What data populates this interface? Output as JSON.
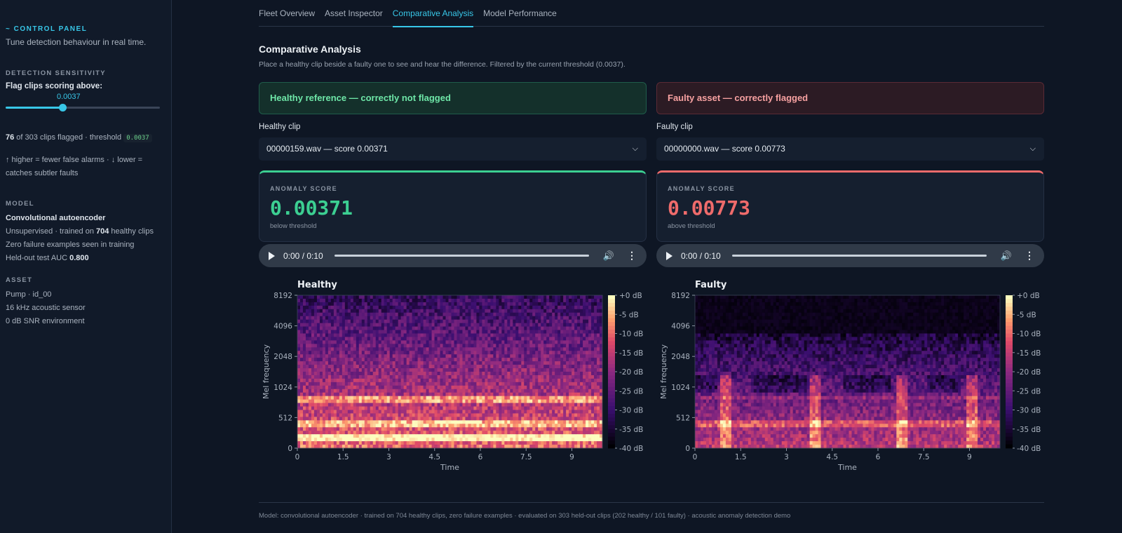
{
  "sidebar": {
    "heading": "~ CONTROL PANEL",
    "subtitle": "Tune detection behaviour in real time.",
    "sensitivity": {
      "label": "DETECTION SENSITIVITY",
      "prompt": "Flag clips scoring above:",
      "value_label": "0.0037",
      "slider_fraction": 0.37
    },
    "flag_summary": {
      "count": "76",
      "rest": " of 303 clips flagged · threshold ",
      "threshold": "0.0037"
    },
    "hint": "↑ higher = fewer false alarms · ↓ lower = catches subtler faults",
    "model": {
      "label": "MODEL",
      "name": "Convolutional autoencoder",
      "trained_prefix": "Unsupervised · trained on ",
      "trained_count": "704",
      "trained_suffix": " healthy clips",
      "zero_failure": "Zero failure examples seen in training",
      "auc_prefix": "Held-out test AUC ",
      "auc_value": "0.800"
    },
    "asset": {
      "label": "ASSET",
      "lines": [
        "Pump · id_00",
        "16 kHz acoustic sensor",
        "0 dB SNR environment"
      ]
    }
  },
  "tabs": [
    {
      "label": "Fleet Overview",
      "active": false
    },
    {
      "label": "Asset Inspector",
      "active": false
    },
    {
      "label": "Comparative Analysis",
      "active": true
    },
    {
      "label": "Model Performance",
      "active": false
    }
  ],
  "main": {
    "title": "Comparative Analysis",
    "description": "Place a healthy clip beside a faulty one to see and hear the difference. Filtered by the current threshold (0.0037).",
    "healthy": {
      "banner": "Healthy reference — correctly not flagged",
      "select_label": "Healthy clip",
      "select_value": "00000159.wav — score 0.00371",
      "score_label": "ANOMALY SCORE",
      "score_value": "0.00371",
      "score_note": "below threshold",
      "audio_time": "0:00 / 0:10",
      "spectrogram_title": "Healthy"
    },
    "faulty": {
      "banner": "Faulty asset — correctly flagged",
      "select_label": "Faulty clip",
      "select_value": "00000000.wav — score 0.00773",
      "score_label": "ANOMALY SCORE",
      "score_value": "0.00773",
      "score_note": "above threshold",
      "audio_time": "0:00 / 0:10",
      "spectrogram_title": "Faulty"
    },
    "spectrogram_axes": {
      "xlabel": "Time",
      "ylabel": "Mel frequency",
      "xticks": [
        "0",
        "1.5",
        "3",
        "4.5",
        "6",
        "7.5",
        "9"
      ],
      "yticks": [
        "8192",
        "4096",
        "2048",
        "1024",
        "512",
        "0"
      ],
      "cbar_ticks": [
        "+0 dB",
        "-5 dB",
        "-10 dB",
        "-15 dB",
        "-20 dB",
        "-25 dB",
        "-30 dB",
        "-35 dB",
        "-40 dB"
      ]
    },
    "footer": "Model: convolutional autoencoder · trained on 704 healthy clips, zero failure examples · evaluated on 303 held-out clips (202 healthy / 101 faulty) · acoustic anomaly detection demo"
  },
  "colors": {
    "accent": "#38c7e8",
    "healthy": "#3ccf92",
    "faulty": "#ef6b6b"
  }
}
